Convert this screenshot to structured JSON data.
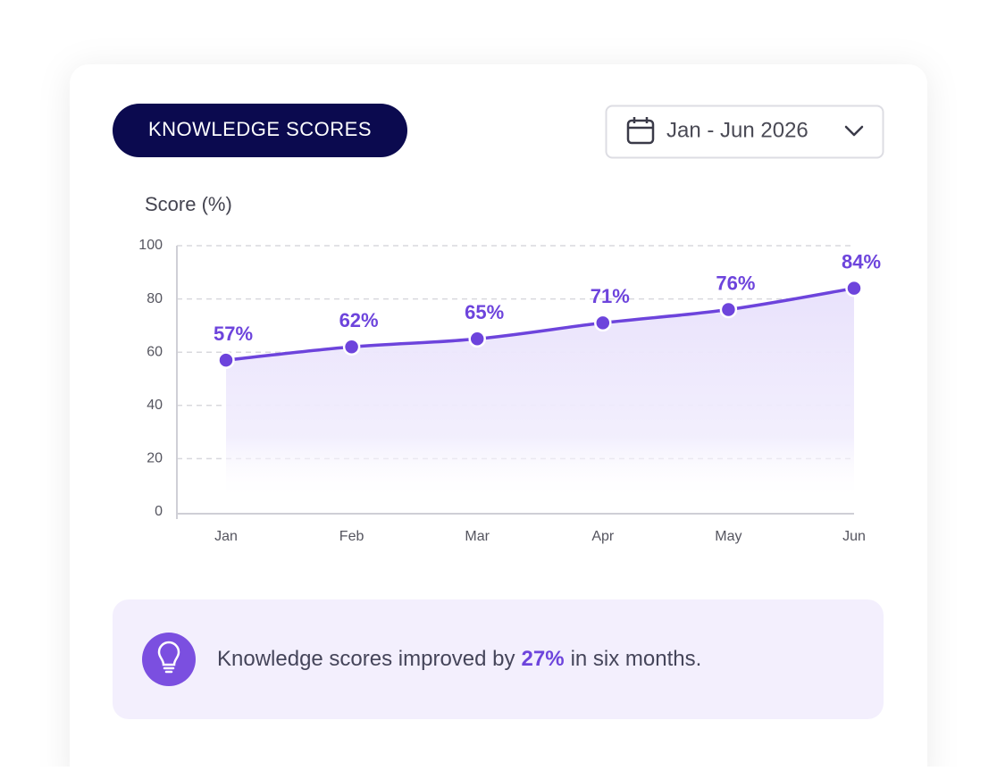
{
  "badge": "KNOWLEDGE SCORES",
  "date_range": "Jan - Jun 2026",
  "chart_data": {
    "type": "line",
    "y_label": "Score (%)",
    "categories": [
      "Jan",
      "Feb",
      "Mar",
      "Apr",
      "May",
      "Jun"
    ],
    "values": [
      57,
      62,
      65,
      71,
      76,
      84
    ],
    "value_labels": [
      "57%",
      "62%",
      "65%",
      "71%",
      "76%",
      "84%"
    ],
    "color": "#6d44dc",
    "ylim": [
      0,
      100
    ],
    "yticks": [
      0,
      20,
      40,
      60,
      80,
      100
    ],
    "grid": true
  },
  "insight": {
    "before": "Knowledge scores improved by",
    "highlight": "27%",
    "after": "in six months."
  }
}
